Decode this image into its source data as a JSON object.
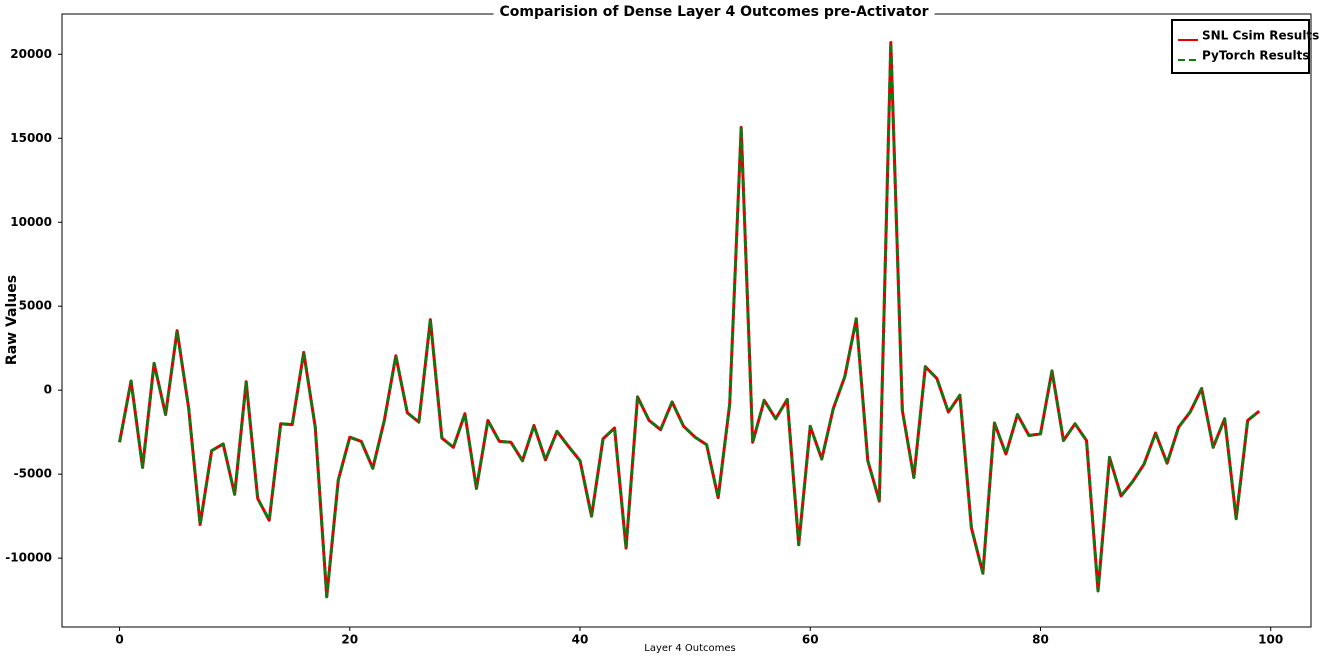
{
  "chart_data": {
    "type": "line",
    "title": "Comparision of Dense Layer 4 Outcomes pre-Activator",
    "x_label": "Layer 4 Outcomes",
    "y_label": "Raw Values",
    "x": [
      0,
      1,
      2,
      3,
      4,
      5,
      6,
      7,
      8,
      9,
      10,
      11,
      12,
      13,
      14,
      15,
      16,
      17,
      18,
      19,
      20,
      21,
      22,
      23,
      24,
      25,
      26,
      27,
      28,
      29,
      30,
      31,
      32,
      33,
      34,
      35,
      36,
      37,
      38,
      39,
      40,
      41,
      42,
      43,
      44,
      45,
      46,
      47,
      48,
      49,
      50,
      51,
      52,
      53,
      54,
      55,
      56,
      57,
      58,
      59,
      60,
      61,
      62,
      63,
      64,
      65,
      66,
      67,
      68,
      69,
      70,
      71,
      72,
      73,
      74,
      75,
      76,
      77,
      78,
      79,
      80,
      81,
      82,
      83,
      84,
      85,
      86,
      87,
      88,
      89,
      90,
      91,
      92,
      93,
      94,
      95,
      96,
      97,
      98,
      99
    ],
    "series": [
      {
        "name": "SNL Csim Results",
        "color": "#e00000",
        "dashed": false,
        "values": [
          -3100,
          550,
          -4600,
          1600,
          -1450,
          3550,
          -1050,
          -8000,
          -3600,
          -3200,
          -6200,
          500,
          -6450,
          -7750,
          -2000,
          -2050,
          2250,
          -2200,
          -12300,
          -5350,
          -2800,
          -3050,
          -4650,
          -1800,
          2050,
          -1350,
          -1900,
          4200,
          -2850,
          -3400,
          -1400,
          -5850,
          -1800,
          -3050,
          -3100,
          -4200,
          -2100,
          -4150,
          -2450,
          -3350,
          -4200,
          -7500,
          -2900,
          -2250,
          -9400,
          -400,
          -1800,
          -2350,
          -700,
          -2150,
          -2800,
          -3250,
          -6400,
          -850,
          15650,
          -3100,
          -600,
          -1700,
          -550,
          -9200,
          -2150,
          -4100,
          -1100,
          800,
          4250,
          -4200,
          -6600,
          20700,
          -1200,
          -5200,
          1400,
          700,
          -1300,
          -300,
          -8200,
          -10900,
          -1950,
          -3800,
          -1450,
          -2700,
          -2600,
          1150,
          -3000,
          -2000,
          -3000,
          -11950,
          -4000,
          -6300,
          -5450,
          -4400,
          -2550,
          -4350,
          -2200,
          -1300,
          100,
          -3400,
          -1700,
          -7650,
          -1800,
          -1250
        ]
      },
      {
        "name": "PyTorch Results",
        "color": "#137813",
        "dashed": true,
        "values": [
          -3100,
          550,
          -4600,
          1600,
          -1450,
          3550,
          -1050,
          -8000,
          -3600,
          -3200,
          -6200,
          500,
          -6450,
          -7750,
          -2000,
          -2050,
          2250,
          -2200,
          -12300,
          -5350,
          -2800,
          -3050,
          -4650,
          -1800,
          2050,
          -1350,
          -1900,
          4200,
          -2850,
          -3400,
          -1400,
          -5850,
          -1800,
          -3050,
          -3100,
          -4200,
          -2100,
          -4150,
          -2450,
          -3350,
          -4200,
          -7500,
          -2900,
          -2250,
          -9400,
          -400,
          -1800,
          -2350,
          -700,
          -2150,
          -2800,
          -3250,
          -6400,
          -850,
          15650,
          -3100,
          -600,
          -1700,
          -550,
          -9200,
          -2150,
          -4100,
          -1100,
          800,
          4250,
          -4200,
          -6600,
          20700,
          -1200,
          -5200,
          1400,
          700,
          -1300,
          -300,
          -8200,
          -10900,
          -1950,
          -3800,
          -1450,
          -2700,
          -2600,
          1150,
          -3000,
          -2000,
          -3000,
          -11950,
          -4000,
          -6300,
          -5450,
          -4400,
          -2550,
          -4350,
          -2200,
          -1300,
          100,
          -3400,
          -1700,
          -7650,
          -1800,
          -1250
        ]
      }
    ],
    "xlim": [
      -5,
      103.5
    ],
    "xticks": [
      0,
      20,
      40,
      60,
      80,
      100
    ],
    "ylim": [
      -14100,
      22400
    ],
    "yticks": [
      -10000,
      -5000,
      0,
      5000,
      10000,
      15000,
      20000
    ],
    "grid": false,
    "legend": "upper right"
  }
}
